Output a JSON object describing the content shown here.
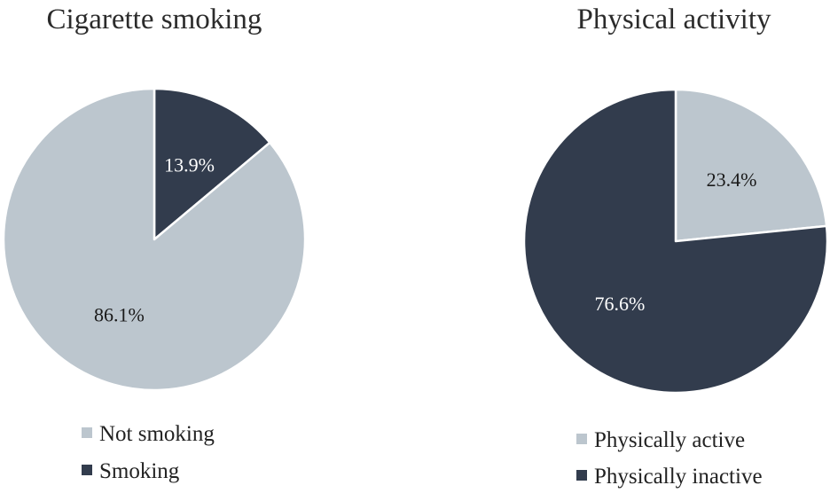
{
  "colors": {
    "light": "#bcc6ce",
    "dark": "#323c4d",
    "slice_border": "#ffffff"
  },
  "chart_data": [
    {
      "type": "pie",
      "title": "Cigarette smoking",
      "start_angle_deg": 0,
      "slices": [
        {
          "name": "Smoking",
          "value": 13.9,
          "label": "13.9%",
          "color": "#323c4d",
          "label_color": "#ffffff"
        },
        {
          "name": "Not smoking",
          "value": 86.1,
          "label": "86.1%",
          "color": "#bcc6ce",
          "label_color": "#1a1a1a"
        }
      ],
      "legend": [
        {
          "label": "Not smoking",
          "color": "#bcc6ce"
        },
        {
          "label": "Smoking",
          "color": "#323c4d"
        }
      ],
      "legend_position": "bottom"
    },
    {
      "type": "pie",
      "title": "Physical activity",
      "start_angle_deg": 0,
      "slices": [
        {
          "name": "Physically active",
          "value": 23.4,
          "label": "23.4%",
          "color": "#bcc6ce",
          "label_color": "#1a1a1a"
        },
        {
          "name": "Physically inactive",
          "value": 76.6,
          "label": "76.6%",
          "color": "#323c4d",
          "label_color": "#ffffff"
        }
      ],
      "legend": [
        {
          "label": "Physically active",
          "color": "#bcc6ce"
        },
        {
          "label": "Physically inactive",
          "color": "#323c4d"
        }
      ],
      "legend_position": "bottom"
    }
  ]
}
